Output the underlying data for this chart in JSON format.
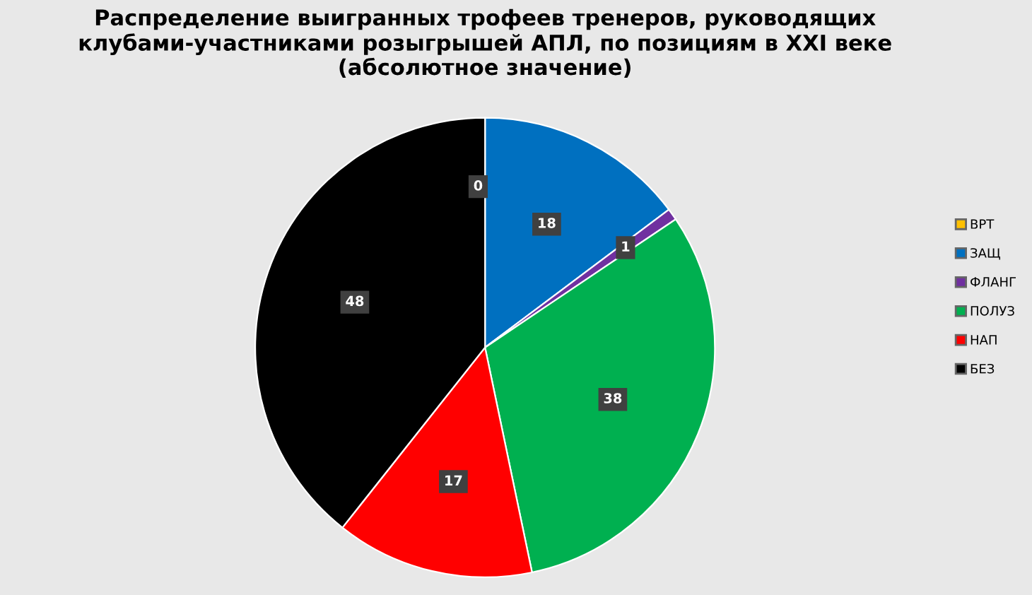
{
  "chart_data": {
    "type": "pie",
    "title": "Распределение выигранных трофеев тренеров, руководящих клубами-участниками розыгрышей АПЛ, по позициям в XXI веке (абсолютное значение)",
    "categories": [
      "ВРТ",
      "ЗАЩ",
      "ФЛАНГ",
      "ПОЛУЗ",
      "НАП",
      "БЕЗ"
    ],
    "values": [
      0,
      18,
      1,
      38,
      17,
      48
    ],
    "colors": [
      "#ffc000",
      "#0070c0",
      "#7030a0",
      "#00b050",
      "#ff0000",
      "#000000"
    ],
    "value_labels": [
      "0",
      "18",
      "1",
      "38",
      "17",
      "48"
    ],
    "legend": "right"
  }
}
